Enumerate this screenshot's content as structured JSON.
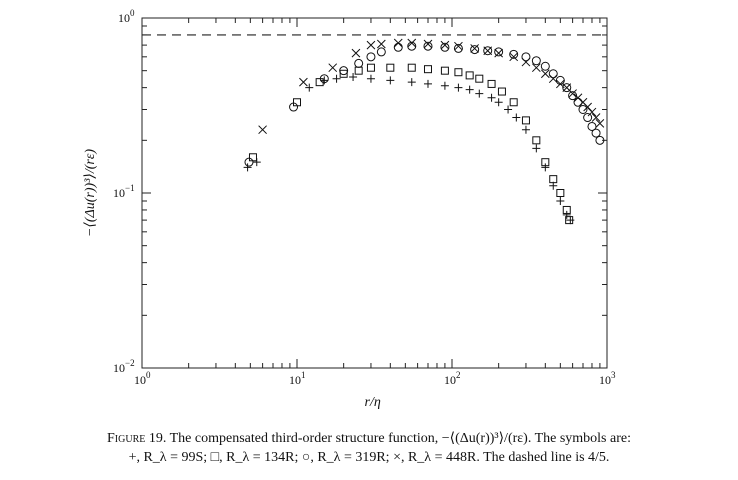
{
  "chart_data": {
    "type": "scatter",
    "title": "",
    "xlabel": "r/η",
    "ylabel": "−⟨(Δu(r))³⟩/(rε)",
    "xscale": "log",
    "yscale": "log",
    "xlim": [
      1,
      1000
    ],
    "ylim": [
      0.01,
      1
    ],
    "x_ticks": [
      {
        "value": 1,
        "mantissa": "10",
        "exp": "0"
      },
      {
        "value": 10,
        "mantissa": "10",
        "exp": "1"
      },
      {
        "value": 100,
        "mantissa": "10",
        "exp": "2"
      },
      {
        "value": 1000,
        "mantissa": "10",
        "exp": "3"
      }
    ],
    "y_ticks": [
      {
        "value": 0.01,
        "mantissa": "10",
        "exp": "−2"
      },
      {
        "value": 0.1,
        "mantissa": "10",
        "exp": "−1"
      },
      {
        "value": 1,
        "mantissa": "10",
        "exp": "0"
      }
    ],
    "reference_line": {
      "y": 0.8,
      "style": "dashed"
    },
    "grid": false,
    "legend": "none",
    "series": [
      {
        "marker": "plus",
        "label": "R_λ = 99S",
        "x": [
          4.8,
          5.5,
          12,
          15,
          18,
          23,
          30,
          40,
          55,
          70,
          90,
          110,
          130,
          150,
          180,
          200,
          230,
          260,
          300,
          350,
          400,
          450,
          500,
          550,
          580
        ],
        "y": [
          0.14,
          0.15,
          0.4,
          0.44,
          0.45,
          0.46,
          0.45,
          0.44,
          0.43,
          0.42,
          0.41,
          0.4,
          0.39,
          0.37,
          0.35,
          0.33,
          0.3,
          0.27,
          0.23,
          0.18,
          0.14,
          0.11,
          0.09,
          0.075,
          0.07
        ]
      },
      {
        "marker": "square",
        "label": "R_λ = 134R",
        "x": [
          5.2,
          10,
          14,
          20,
          25,
          30,
          40,
          55,
          70,
          90,
          110,
          130,
          150,
          180,
          210,
          250,
          300,
          350,
          400,
          450,
          500,
          550,
          570
        ],
        "y": [
          0.16,
          0.33,
          0.43,
          0.48,
          0.5,
          0.52,
          0.52,
          0.52,
          0.51,
          0.5,
          0.49,
          0.47,
          0.45,
          0.42,
          0.38,
          0.33,
          0.26,
          0.2,
          0.15,
          0.12,
          0.1,
          0.08,
          0.07
        ]
      },
      {
        "marker": "circle",
        "label": "R_λ = 319R",
        "x": [
          4.9,
          9.5,
          15,
          20,
          25,
          30,
          35,
          45,
          55,
          70,
          90,
          110,
          140,
          170,
          200,
          250,
          300,
          350,
          400,
          450,
          500,
          550,
          600,
          650,
          700,
          750,
          800,
          850,
          900
        ],
        "y": [
          0.15,
          0.31,
          0.45,
          0.5,
          0.55,
          0.6,
          0.64,
          0.68,
          0.69,
          0.69,
          0.68,
          0.67,
          0.66,
          0.65,
          0.64,
          0.62,
          0.6,
          0.57,
          0.53,
          0.48,
          0.44,
          0.4,
          0.36,
          0.33,
          0.3,
          0.27,
          0.24,
          0.22,
          0.2
        ]
      },
      {
        "marker": "cross",
        "label": "R_λ = 448R",
        "x": [
          6,
          11,
          17,
          24,
          30,
          35,
          45,
          55,
          70,
          90,
          110,
          140,
          170,
          200,
          250,
          300,
          350,
          400,
          450,
          500,
          550,
          600,
          650,
          700,
          750,
          800,
          850,
          900
        ],
        "y": [
          0.23,
          0.43,
          0.52,
          0.63,
          0.7,
          0.71,
          0.72,
          0.72,
          0.71,
          0.7,
          0.69,
          0.67,
          0.65,
          0.63,
          0.6,
          0.56,
          0.52,
          0.48,
          0.45,
          0.42,
          0.4,
          0.37,
          0.35,
          0.33,
          0.31,
          0.29,
          0.27,
          0.25
        ]
      }
    ]
  },
  "caption": {
    "figure_label": "Figure 19.",
    "line1_text": " The compensated third-order structure function, −⟨(Δu(r))³⟩/(rε). The symbols are:",
    "line2_text": "+, R_λ = 99S; □, R_λ = 134R; ○, R_λ = 319R; ×, R_λ = 448R. The dashed line is 4/5."
  }
}
